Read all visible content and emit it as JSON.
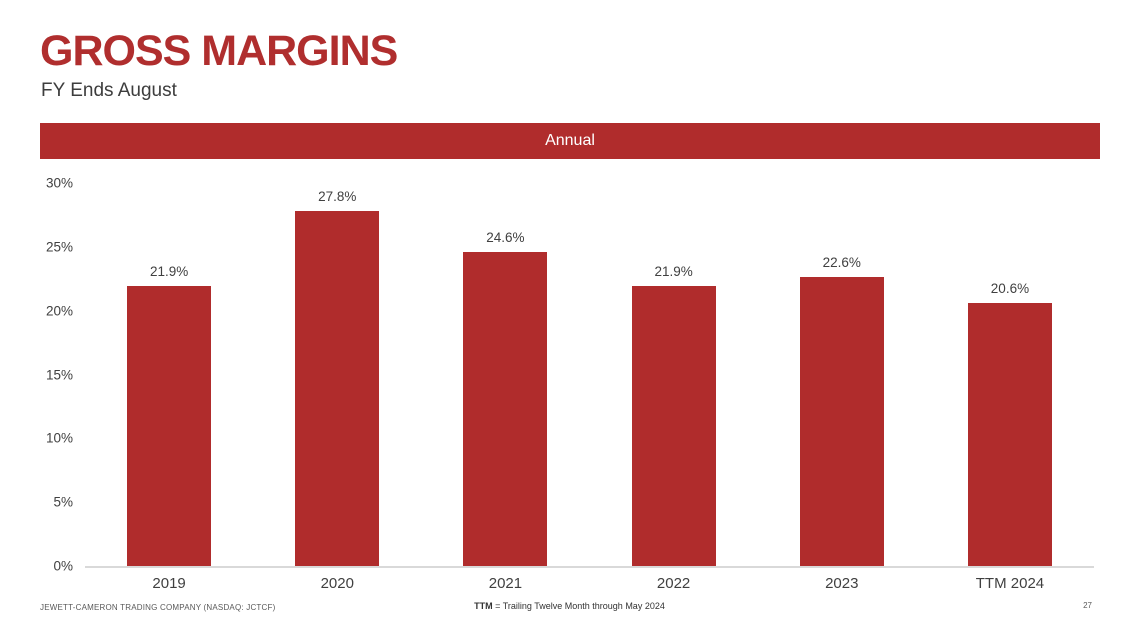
{
  "slide": {
    "title": "GROSS MARGINS",
    "subtitle": "FY Ends August",
    "banner_label": "Annual",
    "page_number": "27"
  },
  "footer": {
    "left": "JEWETT-CAMERON TRADING COMPANY (NASDAQ: JCTCF)",
    "center_bold": "TTM",
    "center_rest": " = Trailing Twelve Month through May 2024"
  },
  "colors": {
    "bar_red": "#B02C2C",
    "banner_red": "#B02C2C",
    "title_red": "#B02E2E",
    "axis_line_gray": "#D9D9D9",
    "label_gray": "#404040",
    "footer_gray": "#595959"
  },
  "chart_data": {
    "type": "bar",
    "title": "Annual",
    "categories": [
      "2019",
      "2020",
      "2021",
      "2022",
      "2023",
      "TTM 2024"
    ],
    "values": [
      21.9,
      27.8,
      24.6,
      21.9,
      22.6,
      20.6
    ],
    "value_labels": [
      "21.9%",
      "27.8%",
      "24.6%",
      "21.9%",
      "22.6%",
      "20.6%"
    ],
    "xlabel": "",
    "ylabel": "",
    "ylim": [
      0,
      30
    ],
    "ytick_values": [
      0,
      5,
      10,
      15,
      20,
      25,
      30
    ],
    "ytick_labels": [
      "0%",
      "5%",
      "10%",
      "15%",
      "20%",
      "25%",
      "30%"
    ],
    "grid": false,
    "legend": false,
    "data_labels": true,
    "bar_color": "#B02C2C"
  }
}
